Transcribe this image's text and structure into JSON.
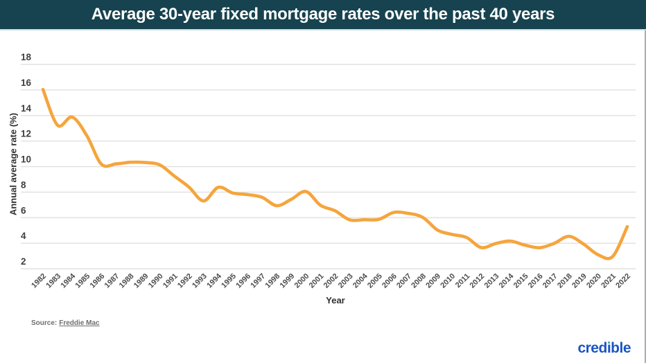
{
  "header": {
    "title": "Average 30-year fixed mortgage rates over the past 40 years",
    "bar_color": "#16434F"
  },
  "chart_data": {
    "type": "line",
    "title": "Average 30-year fixed mortgage rates over the past 40 years",
    "xlabel": "Year",
    "ylabel": "Annual average rate (%)",
    "ylim": [
      2,
      18
    ],
    "yticks": [
      2,
      4,
      6,
      8,
      10,
      12,
      14,
      16,
      18
    ],
    "grid": true,
    "legend": "none",
    "line_color": "#F5A53D",
    "gridline_color": "#E2E2E2",
    "categories": [
      1982,
      1983,
      1984,
      1985,
      1986,
      1987,
      1988,
      1989,
      1990,
      1991,
      1992,
      1993,
      1994,
      1995,
      1996,
      1997,
      1998,
      1999,
      2000,
      2001,
      2002,
      2003,
      2004,
      2005,
      2006,
      2007,
      2008,
      2009,
      2010,
      2011,
      2012,
      2013,
      2014,
      2015,
      2016,
      2017,
      2018,
      2019,
      2020,
      2021,
      2022
    ],
    "values": [
      16.04,
      13.24,
      13.88,
      12.43,
      10.19,
      10.21,
      10.34,
      10.32,
      10.13,
      9.25,
      8.39,
      7.31,
      8.38,
      7.93,
      7.81,
      7.6,
      6.94,
      7.44,
      8.05,
      6.97,
      6.54,
      5.83,
      5.84,
      5.87,
      6.41,
      6.34,
      6.03,
      5.04,
      4.69,
      4.45,
      3.66,
      3.98,
      4.17,
      3.85,
      3.65,
      3.99,
      4.54,
      3.94,
      3.1,
      2.96,
      5.3
    ]
  },
  "footer": {
    "source_prefix": "Source:",
    "source_link": "Freddie Mac",
    "logo_parts": {
      "pre": "cred",
      "i": "ı",
      "post": "ble"
    },
    "logo_color": "#1B55C3",
    "logo_dot_color": "#35B3A0"
  }
}
